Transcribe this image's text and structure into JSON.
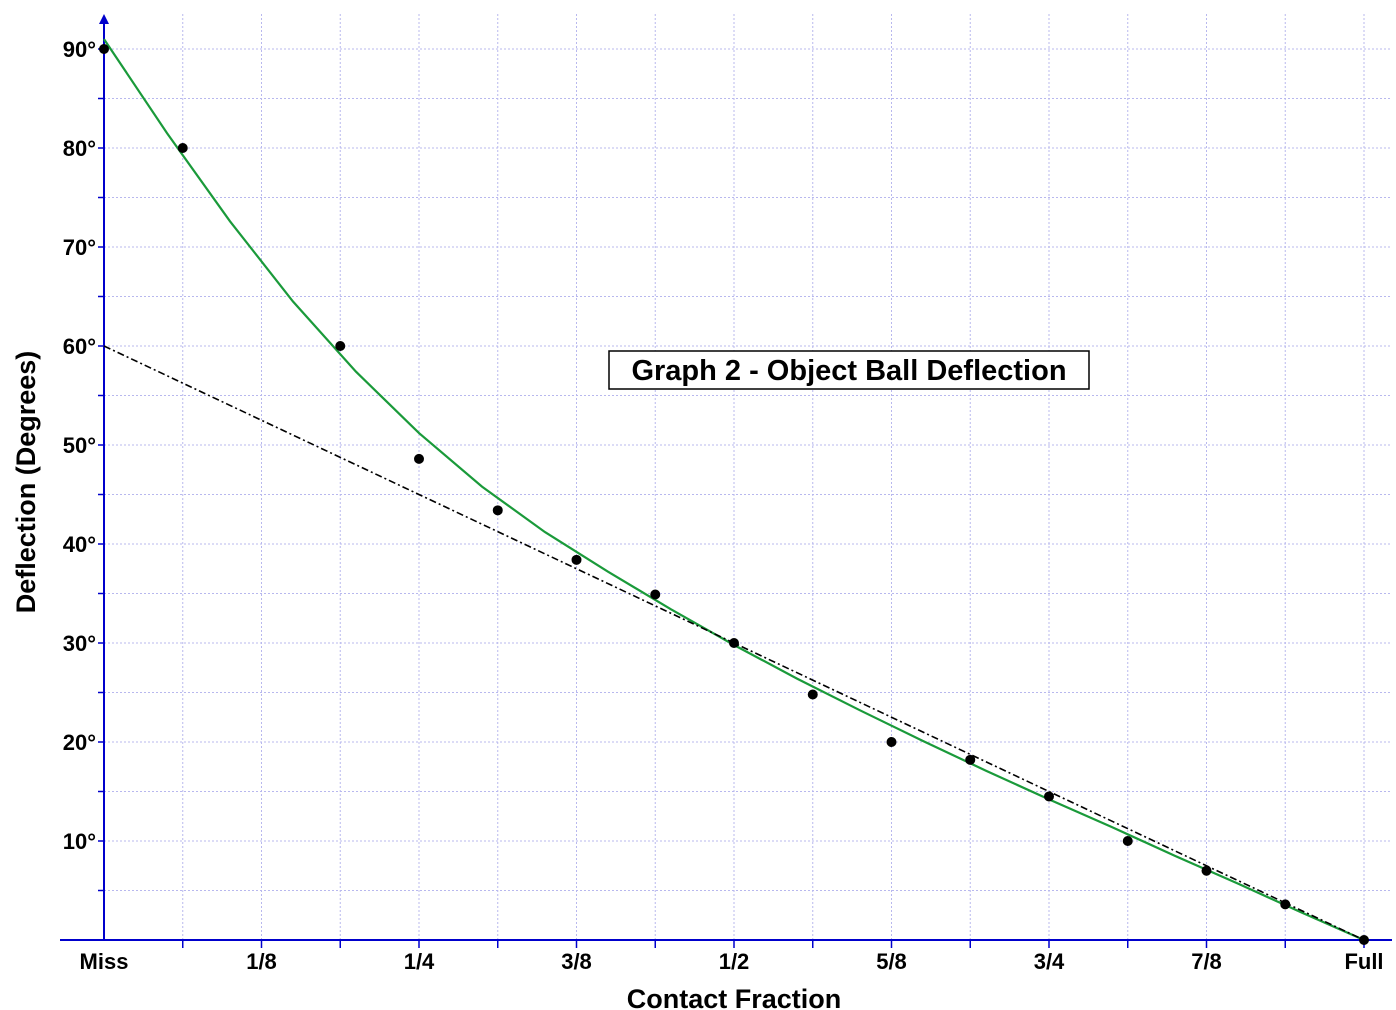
{
  "chart_data": {
    "type": "scatter",
    "title": "Graph 2 - Object Ball Deflection",
    "xlabel": "Contact Fraction",
    "ylabel": "Deflection (Degrees)",
    "xlim": [
      0,
      1
    ],
    "ylim": [
      0,
      90
    ],
    "grid": true,
    "x_tick_labels": [
      {
        "x": 0,
        "label": "Miss"
      },
      {
        "x": 0.125,
        "label": "1/8"
      },
      {
        "x": 0.25,
        "label": "1/4"
      },
      {
        "x": 0.375,
        "label": "3/8"
      },
      {
        "x": 0.5,
        "label": "1/2"
      },
      {
        "x": 0.625,
        "label": "5/8"
      },
      {
        "x": 0.75,
        "label": "3/4"
      },
      {
        "x": 0.875,
        "label": "7/8"
      },
      {
        "x": 1,
        "label": "Full"
      }
    ],
    "y_tick_labels": [
      {
        "y": 10,
        "label": "10°"
      },
      {
        "y": 20,
        "label": "20°"
      },
      {
        "y": 30,
        "label": "30°"
      },
      {
        "y": 40,
        "label": "40°"
      },
      {
        "y": 50,
        "label": "50°"
      },
      {
        "y": 60,
        "label": "60°"
      },
      {
        "y": 70,
        "label": "70°"
      },
      {
        "y": 80,
        "label": "80°"
      },
      {
        "y": 90,
        "label": "90°"
      }
    ],
    "series": [
      {
        "type": "scatter",
        "color": "#000000",
        "x": [
          0,
          0.0625,
          0.1875,
          0.25,
          0.3125,
          0.375,
          0.4375,
          0.5,
          0.5625,
          0.625,
          0.6875,
          0.75,
          0.8125,
          0.875,
          0.9375,
          1
        ],
        "y": [
          90,
          80,
          60,
          48.6,
          43.4,
          38.4,
          34.9,
          30,
          24.8,
          20,
          18.2,
          14.5,
          10,
          7,
          3.6,
          0
        ]
      },
      {
        "type": "line",
        "style": "solid",
        "color": "#1a9a3a",
        "x": [
          0,
          0.05,
          0.1,
          0.15,
          0.2,
          0.25,
          0.3,
          0.35,
          0.4,
          0.45,
          0.5,
          0.55,
          0.6,
          0.65,
          0.7,
          0.75,
          0.8,
          0.85,
          0.9,
          0.95,
          1
        ],
        "y": [
          91,
          81.5,
          72.6,
          64.5,
          57.4,
          51.2,
          45.8,
          41.2,
          37.2,
          33.4,
          29.8,
          26.4,
          23.2,
          20.1,
          17.1,
          14.2,
          11.4,
          8.5,
          5.7,
          2.8,
          0
        ]
      },
      {
        "type": "line",
        "style": "dash-dot",
        "color": "#000000",
        "x": [
          0,
          1
        ],
        "y": [
          60,
          0
        ]
      }
    ]
  },
  "colors": {
    "axis": "#0000cc",
    "grid": "#b8b8ee",
    "fit_curve": "#1a9a3a",
    "points": "#000000"
  }
}
